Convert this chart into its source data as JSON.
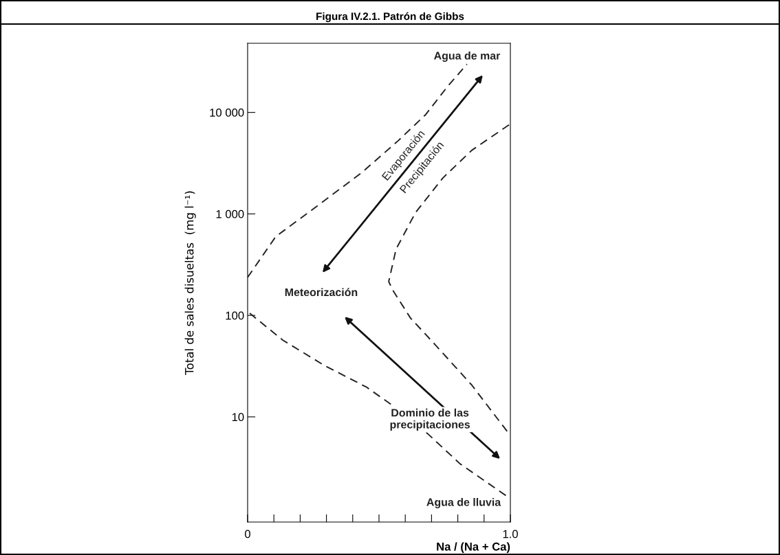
{
  "chart_data": {
    "type": "line",
    "title": "Figura IV.2.1. Patrón de Gibbs",
    "xlabel": "Na / (Na + Ca)",
    "ylabel": "Total de sales disueltas  (mg l⁻¹)",
    "log": "y",
    "grid": false,
    "line_style": "dashed",
    "marker": "none",
    "xlim": [
      0,
      1.0
    ],
    "ylim": [
      0.92,
      48000
    ],
    "xticks": [
      0,
      {
        "value": 0.1,
        "label": null
      },
      {
        "value": 0.2,
        "label": null
      },
      {
        "value": 0.3,
        "label": null
      },
      {
        "value": 0.4,
        "label": null
      },
      {
        "value": 0.5,
        "label": null
      },
      {
        "value": 0.6,
        "label": null
      },
      {
        "value": 0.7,
        "label": null
      },
      {
        "value": 0.8,
        "label": null
      },
      {
        "value": 0.9,
        "label": null
      },
      {
        "value": 1.0,
        "label": "1.0"
      }
    ],
    "yticks": [
      10,
      100,
      {
        "value": 1000,
        "label": "1 000"
      },
      {
        "value": 10000,
        "label": "10 000"
      }
    ],
    "series": [
      {
        "color": "#222222",
        "x": [
          0,
          0.107,
          0.246,
          0.435,
          0.573,
          0.678,
          0.762,
          0.835
        ],
        "values": [
          237,
          597,
          1100,
          2560,
          5260,
          9540,
          18150,
          29900
        ]
      },
      {
        "color": "#222222",
        "x": [
          0.995,
          0.853,
          0.743,
          0.639,
          0.565,
          0.537,
          0.555,
          0.62,
          0.715,
          0.853,
          0.995
        ],
        "values": [
          7550,
          4230,
          2260,
          1030,
          450,
          215,
          173,
          94,
          51,
          20.6,
          6.8
        ]
      },
      {
        "color": "#222222",
        "x": [
          0.008,
          0.134,
          0.293,
          0.453,
          0.547,
          0.686,
          0.809,
          0.984
        ],
        "values": [
          105,
          57,
          32,
          19.6,
          13.2,
          6.8,
          3.44,
          1.67
        ]
      }
    ],
    "annotations": [
      "Agua de mar",
      "Evaporación",
      "Precipitación",
      "Meteorización",
      "Dominio de las\nprecipitaciones",
      "Agua de lluvia"
    ]
  }
}
